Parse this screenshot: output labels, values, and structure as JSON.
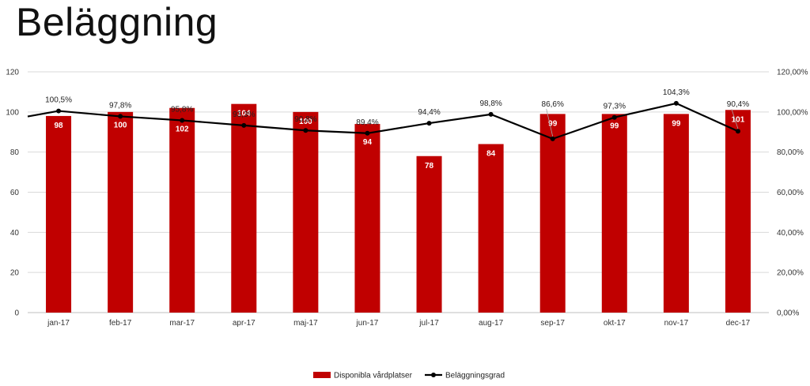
{
  "title": "Beläggning",
  "chart_data": {
    "type": "bar",
    "categories": [
      "jan-17",
      "feb-17",
      "mar-17",
      "apr-17",
      "maj-17",
      "jun-17",
      "jul-17",
      "aug-17",
      "sep-17",
      "okt-17",
      "nov-17",
      "dec-17"
    ],
    "series": [
      {
        "name": "Disponibla vårdplatser",
        "type": "bar",
        "axis": "left",
        "color": "#c00000",
        "values": [
          98,
          100,
          102,
          104,
          100,
          94,
          78,
          84,
          99,
          99,
          99,
          101
        ],
        "labels": [
          "98",
          "100",
          "102",
          "104",
          "100",
          "94",
          "78",
          "84",
          "99",
          "99",
          "99",
          "101"
        ]
      },
      {
        "name": "Beläggningsgrad",
        "type": "line",
        "axis": "right",
        "color": "#000000",
        "values": [
          100.5,
          97.8,
          95.8,
          93.3,
          90.8,
          89.4,
          94.4,
          98.8,
          86.6,
          97.3,
          104.3,
          90.4
        ],
        "labels": [
          "100,5%",
          "97,8%",
          "95,8%",
          "93,3%",
          "90,8%",
          "89,4%",
          "94,4%",
          "98,8%",
          "86,6%",
          "97,3%",
          "104,3%",
          "90,4%"
        ]
      }
    ],
    "y_left": {
      "min": 0,
      "max": 120,
      "ticks": [
        "0",
        "20",
        "40",
        "60",
        "80",
        "100",
        "120"
      ]
    },
    "y_right": {
      "min": 0,
      "max": 120,
      "ticks": [
        "0,00%",
        "20,00%",
        "40,00%",
        "60,00%",
        "80,00%",
        "100,00%",
        "120,00%"
      ]
    },
    "grid": true,
    "legend": "bottom-center"
  }
}
